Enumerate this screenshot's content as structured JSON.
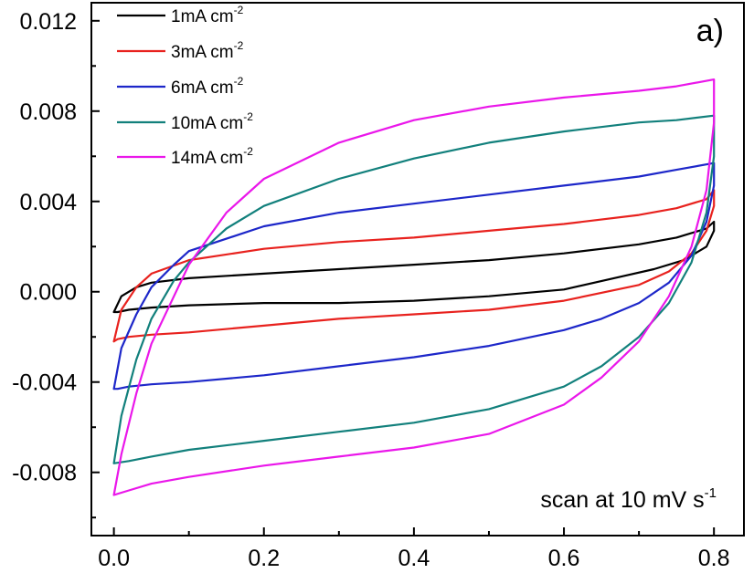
{
  "chart_data": {
    "type": "line",
    "panel_label": "a)",
    "annotation": {
      "text": "scan at 10 mV s",
      "superscript": "-1"
    },
    "xlabel": "",
    "ylabel": "",
    "xlim": [
      -0.03,
      0.84
    ],
    "ylim": [
      -0.0108,
      0.0128
    ],
    "x_ticks": [
      {
        "value": 0.0,
        "label": "0.0"
      },
      {
        "value": 0.2,
        "label": "0.2"
      },
      {
        "value": 0.4,
        "label": "0.4"
      },
      {
        "value": 0.6,
        "label": "0.6"
      },
      {
        "value": 0.8,
        "label": "0.8"
      }
    ],
    "y_ticks": [
      {
        "value": 0.012,
        "label": "0.012"
      },
      {
        "value": 0.008,
        "label": "0.008"
      },
      {
        "value": 0.004,
        "label": "0.004"
      },
      {
        "value": 0.0,
        "label": "0.000"
      },
      {
        "value": -0.004,
        "label": "-0.004"
      },
      {
        "value": -0.008,
        "label": "-0.008"
      }
    ],
    "grid": false,
    "legend_position": "top-left",
    "series": [
      {
        "name": "1mA cm",
        "name_superscript": "-2",
        "color": "#000000",
        "x": [
          0.0,
          0.01,
          0.03,
          0.05,
          0.1,
          0.2,
          0.3,
          0.4,
          0.5,
          0.6,
          0.7,
          0.75,
          0.79,
          0.8,
          0.8,
          0.79,
          0.76,
          0.72,
          0.68,
          0.6,
          0.5,
          0.4,
          0.3,
          0.2,
          0.1,
          0.05,
          0.02,
          0.005,
          0.0
        ],
        "y": [
          -0.0009,
          -0.0002,
          0.0002,
          0.0004,
          0.0006,
          0.0008,
          0.001,
          0.0012,
          0.0014,
          0.0017,
          0.0021,
          0.0024,
          0.0028,
          0.0031,
          0.0027,
          0.002,
          0.0014,
          0.001,
          0.0007,
          0.0001,
          -0.0002,
          -0.0004,
          -0.0005,
          -0.0005,
          -0.0006,
          -0.0007,
          -0.0008,
          -0.0009,
          -0.0009
        ]
      },
      {
        "name": "3mA cm",
        "name_superscript": "-2",
        "color": "#e8221e",
        "x": [
          0.0,
          0.01,
          0.03,
          0.05,
          0.1,
          0.2,
          0.3,
          0.4,
          0.5,
          0.6,
          0.7,
          0.75,
          0.79,
          0.8,
          0.8,
          0.79,
          0.77,
          0.74,
          0.7,
          0.6,
          0.5,
          0.4,
          0.3,
          0.2,
          0.1,
          0.05,
          0.02,
          0.005,
          0.0
        ],
        "y": [
          -0.0022,
          -0.0008,
          0.0002,
          0.0008,
          0.0014,
          0.0019,
          0.0022,
          0.0024,
          0.0027,
          0.003,
          0.0034,
          0.0037,
          0.0041,
          0.0045,
          0.0038,
          0.0027,
          0.0017,
          0.0009,
          0.0003,
          -0.0004,
          -0.0008,
          -0.001,
          -0.0012,
          -0.0015,
          -0.0018,
          -0.0019,
          -0.002,
          -0.0021,
          -0.0022
        ]
      },
      {
        "name": "6mA cm",
        "name_superscript": "-2",
        "color": "#1d27c9",
        "x": [
          0.0,
          0.01,
          0.03,
          0.05,
          0.08,
          0.1,
          0.2,
          0.3,
          0.4,
          0.5,
          0.6,
          0.7,
          0.75,
          0.8,
          0.8,
          0.79,
          0.77,
          0.74,
          0.7,
          0.65,
          0.6,
          0.5,
          0.4,
          0.3,
          0.2,
          0.1,
          0.05,
          0.02,
          0.005,
          0.0
        ],
        "y": [
          -0.0043,
          -0.0025,
          -0.001,
          0.0002,
          0.0012,
          0.0018,
          0.0029,
          0.0035,
          0.0039,
          0.0043,
          0.0047,
          0.0051,
          0.0054,
          0.0057,
          0.0047,
          0.0031,
          0.0016,
          0.0004,
          -0.0005,
          -0.0012,
          -0.0017,
          -0.0024,
          -0.0029,
          -0.0033,
          -0.0037,
          -0.004,
          -0.0041,
          -0.0042,
          -0.0043,
          -0.0043
        ]
      },
      {
        "name": "10mA cm",
        "name_superscript": "-2",
        "color": "#12807c",
        "x": [
          0.0,
          0.01,
          0.03,
          0.05,
          0.08,
          0.1,
          0.15,
          0.2,
          0.3,
          0.4,
          0.5,
          0.6,
          0.7,
          0.75,
          0.8,
          0.8,
          0.79,
          0.77,
          0.74,
          0.7,
          0.65,
          0.6,
          0.5,
          0.4,
          0.3,
          0.2,
          0.1,
          0.05,
          0.02,
          0.0
        ],
        "y": [
          -0.0076,
          -0.0055,
          -0.003,
          -0.0012,
          0.0005,
          0.0013,
          0.0028,
          0.0038,
          0.005,
          0.0059,
          0.0066,
          0.0071,
          0.0075,
          0.0076,
          0.0078,
          0.006,
          0.0035,
          0.0013,
          -0.0005,
          -0.002,
          -0.0033,
          -0.0042,
          -0.0052,
          -0.0058,
          -0.0062,
          -0.0066,
          -0.007,
          -0.0073,
          -0.0075,
          -0.0076
        ]
      },
      {
        "name": "14mA cm",
        "name_superscript": "-2",
        "color": "#ea17ea",
        "x": [
          0.0,
          0.01,
          0.03,
          0.05,
          0.08,
          0.1,
          0.15,
          0.2,
          0.3,
          0.4,
          0.5,
          0.6,
          0.7,
          0.75,
          0.8,
          0.8,
          0.79,
          0.77,
          0.74,
          0.7,
          0.65,
          0.6,
          0.5,
          0.4,
          0.3,
          0.2,
          0.1,
          0.05,
          0.02,
          0.0
        ],
        "y": [
          -0.009,
          -0.0072,
          -0.0045,
          -0.0023,
          -0.0002,
          0.0012,
          0.0035,
          0.005,
          0.0066,
          0.0076,
          0.0082,
          0.0086,
          0.0089,
          0.0091,
          0.0094,
          0.0075,
          0.0045,
          0.002,
          -0.0002,
          -0.0022,
          -0.0038,
          -0.005,
          -0.0063,
          -0.0069,
          -0.0073,
          -0.0077,
          -0.0082,
          -0.0085,
          -0.0088,
          -0.009
        ]
      }
    ]
  }
}
